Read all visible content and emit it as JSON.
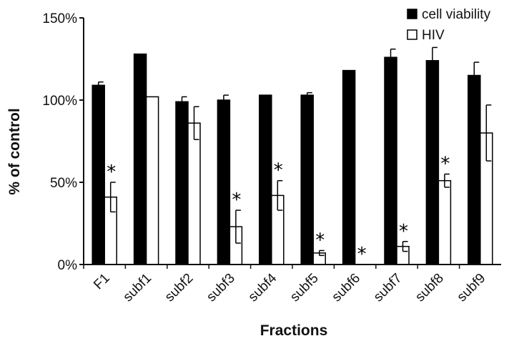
{
  "chart_data": {
    "type": "bar",
    "xlabel": "Fractions",
    "ylabel": "% of control",
    "ylim": [
      0,
      150
    ],
    "yticks": [
      {
        "value": 0,
        "label": "0%"
      },
      {
        "value": 50,
        "label": "50%"
      },
      {
        "value": 100,
        "label": "100%"
      },
      {
        "value": 150,
        "label": "150%"
      }
    ],
    "categories": [
      "F1",
      "subf1",
      "subf2",
      "subf3",
      "subf4",
      "subf5",
      "subf6",
      "subf7",
      "subf8",
      "subf9"
    ],
    "series": [
      {
        "name": "cell viability",
        "color": "#000000",
        "fill": "solid",
        "values": [
          109,
          128,
          99,
          100,
          103,
          103,
          118,
          126,
          124,
          115
        ],
        "errors": [
          2,
          0,
          3,
          3,
          0,
          1.5,
          0,
          5,
          8,
          8
        ]
      },
      {
        "name": "HIV",
        "color": "#ffffff",
        "fill": "open",
        "values": [
          41,
          102,
          86,
          23,
          42,
          7,
          0,
          11,
          51,
          80
        ],
        "errors": [
          9,
          0,
          10,
          10,
          9,
          1.5,
          0,
          3,
          4,
          17
        ]
      }
    ],
    "significance": [
      "*",
      "",
      "",
      "*",
      "*",
      "*",
      "*",
      "*",
      "*",
      ""
    ],
    "legend_position": "top-right",
    "grid": false
  }
}
